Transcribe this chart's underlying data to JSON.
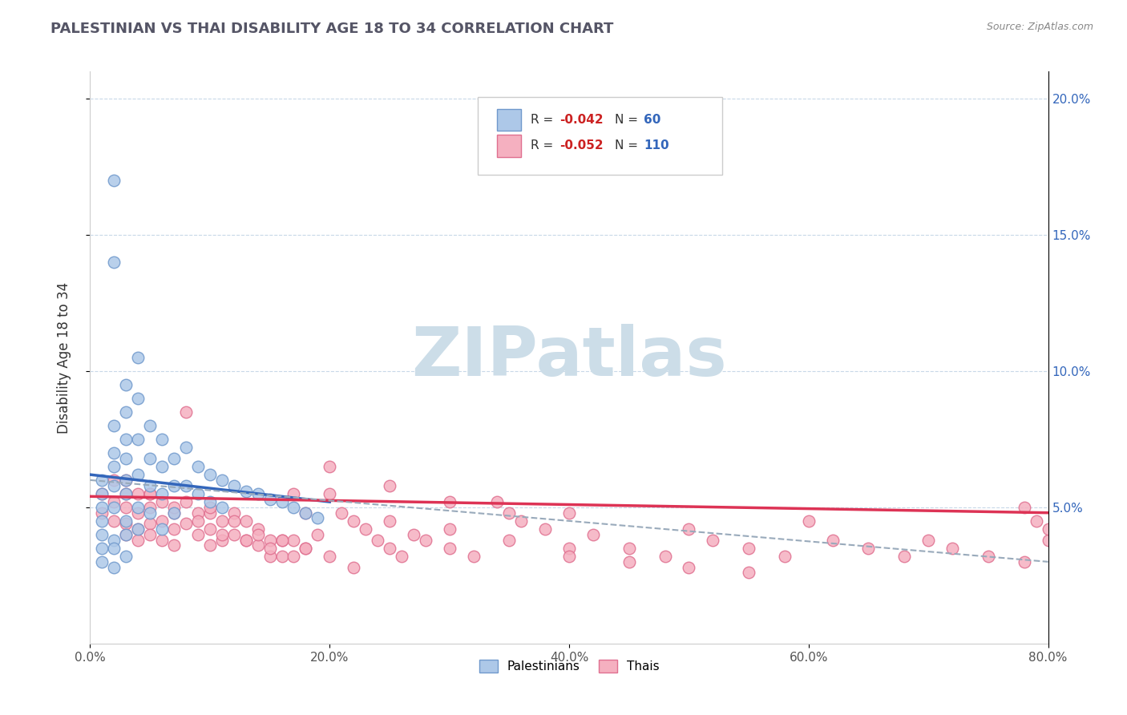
{
  "title": "PALESTINIAN VS THAI DISABILITY AGE 18 TO 34 CORRELATION CHART",
  "source_text": "Source: ZipAtlas.com",
  "ylabel": "Disability Age 18 to 34",
  "xlim": [
    0.0,
    0.8
  ],
  "ylim": [
    0.0,
    0.21
  ],
  "xtick_labels": [
    "0.0%",
    "20.0%",
    "40.0%",
    "60.0%",
    "80.0%"
  ],
  "xtick_vals": [
    0.0,
    0.2,
    0.4,
    0.6,
    0.8
  ],
  "ytick_labels": [
    "5.0%",
    "10.0%",
    "15.0%",
    "20.0%"
  ],
  "ytick_vals": [
    0.05,
    0.1,
    0.15,
    0.2
  ],
  "blue_color": "#adc8e8",
  "pink_color": "#f5b0c0",
  "blue_edge": "#7099cc",
  "pink_edge": "#e07090",
  "trend_blue": "#3366bb",
  "trend_pink": "#dd3355",
  "trend_dashed": "#99aabb",
  "legend_r_color": "#cc2222",
  "legend_n_color": "#3366bb",
  "watermark_text": "ZIPatlas",
  "watermark_color": "#ccdde8",
  "R_blue": -0.042,
  "N_blue": 60,
  "R_pink": -0.052,
  "N_pink": 110,
  "blue_x": [
    0.01,
    0.01,
    0.01,
    0.01,
    0.01,
    0.01,
    0.02,
    0.02,
    0.02,
    0.02,
    0.02,
    0.02,
    0.02,
    0.02,
    0.03,
    0.03,
    0.03,
    0.03,
    0.03,
    0.03,
    0.03,
    0.04,
    0.04,
    0.04,
    0.04,
    0.04,
    0.05,
    0.05,
    0.05,
    0.05,
    0.06,
    0.06,
    0.06,
    0.06,
    0.07,
    0.07,
    0.07,
    0.08,
    0.08,
    0.09,
    0.09,
    0.1,
    0.1,
    0.11,
    0.11,
    0.12,
    0.13,
    0.14,
    0.15,
    0.16,
    0.17,
    0.18,
    0.19,
    0.01,
    0.02,
    0.02,
    0.03,
    0.03,
    0.04
  ],
  "blue_y": [
    0.06,
    0.055,
    0.05,
    0.045,
    0.04,
    0.035,
    0.17,
    0.14,
    0.08,
    0.07,
    0.065,
    0.058,
    0.05,
    0.038,
    0.095,
    0.085,
    0.075,
    0.068,
    0.06,
    0.055,
    0.045,
    0.105,
    0.09,
    0.075,
    0.062,
    0.05,
    0.08,
    0.068,
    0.058,
    0.048,
    0.075,
    0.065,
    0.055,
    0.042,
    0.068,
    0.058,
    0.048,
    0.072,
    0.058,
    0.065,
    0.055,
    0.062,
    0.052,
    0.06,
    0.05,
    0.058,
    0.056,
    0.055,
    0.053,
    0.052,
    0.05,
    0.048,
    0.046,
    0.03,
    0.035,
    0.028,
    0.04,
    0.032,
    0.042
  ],
  "pink_x": [
    0.01,
    0.01,
    0.02,
    0.02,
    0.02,
    0.03,
    0.03,
    0.03,
    0.03,
    0.04,
    0.04,
    0.04,
    0.04,
    0.05,
    0.05,
    0.05,
    0.05,
    0.06,
    0.06,
    0.06,
    0.07,
    0.07,
    0.07,
    0.08,
    0.08,
    0.08,
    0.09,
    0.09,
    0.1,
    0.1,
    0.1,
    0.11,
    0.11,
    0.12,
    0.12,
    0.13,
    0.13,
    0.14,
    0.14,
    0.15,
    0.15,
    0.16,
    0.16,
    0.17,
    0.17,
    0.18,
    0.18,
    0.19,
    0.2,
    0.21,
    0.22,
    0.23,
    0.24,
    0.25,
    0.26,
    0.27,
    0.28,
    0.3,
    0.32,
    0.34,
    0.36,
    0.38,
    0.4,
    0.42,
    0.45,
    0.48,
    0.5,
    0.52,
    0.55,
    0.58,
    0.6,
    0.62,
    0.65,
    0.68,
    0.7,
    0.72,
    0.75,
    0.78,
    0.8,
    0.2,
    0.25,
    0.3,
    0.35,
    0.25,
    0.3,
    0.35,
    0.4,
    0.4,
    0.45,
    0.5,
    0.55,
    0.1,
    0.12,
    0.14,
    0.16,
    0.18,
    0.2,
    0.22,
    0.03,
    0.05,
    0.07,
    0.09,
    0.11,
    0.13,
    0.15,
    0.17,
    0.78,
    0.79,
    0.8
  ],
  "pink_y": [
    0.055,
    0.048,
    0.06,
    0.052,
    0.045,
    0.055,
    0.05,
    0.044,
    0.04,
    0.055,
    0.048,
    0.042,
    0.038,
    0.055,
    0.05,
    0.044,
    0.04,
    0.052,
    0.045,
    0.038,
    0.048,
    0.042,
    0.036,
    0.085,
    0.052,
    0.044,
    0.048,
    0.04,
    0.048,
    0.042,
    0.036,
    0.045,
    0.038,
    0.048,
    0.04,
    0.045,
    0.038,
    0.042,
    0.036,
    0.038,
    0.032,
    0.038,
    0.032,
    0.055,
    0.038,
    0.048,
    0.035,
    0.04,
    0.055,
    0.048,
    0.045,
    0.042,
    0.038,
    0.035,
    0.032,
    0.04,
    0.038,
    0.035,
    0.032,
    0.052,
    0.045,
    0.042,
    0.048,
    0.04,
    0.035,
    0.032,
    0.042,
    0.038,
    0.035,
    0.032,
    0.045,
    0.038,
    0.035,
    0.032,
    0.038,
    0.035,
    0.032,
    0.03,
    0.038,
    0.065,
    0.058,
    0.052,
    0.048,
    0.045,
    0.042,
    0.038,
    0.035,
    0.032,
    0.03,
    0.028,
    0.026,
    0.05,
    0.045,
    0.04,
    0.038,
    0.035,
    0.032,
    0.028,
    0.06,
    0.055,
    0.05,
    0.045,
    0.04,
    0.038,
    0.035,
    0.032,
    0.05,
    0.045,
    0.042
  ],
  "blue_trend_x": [
    0.0,
    0.2
  ],
  "blue_trend_y": [
    0.062,
    0.052
  ],
  "pink_trend_x": [
    0.0,
    0.8
  ],
  "pink_trend_y": [
    0.054,
    0.048
  ],
  "dashed_trend_x": [
    0.0,
    0.8
  ],
  "dashed_trend_y": [
    0.06,
    0.03
  ]
}
